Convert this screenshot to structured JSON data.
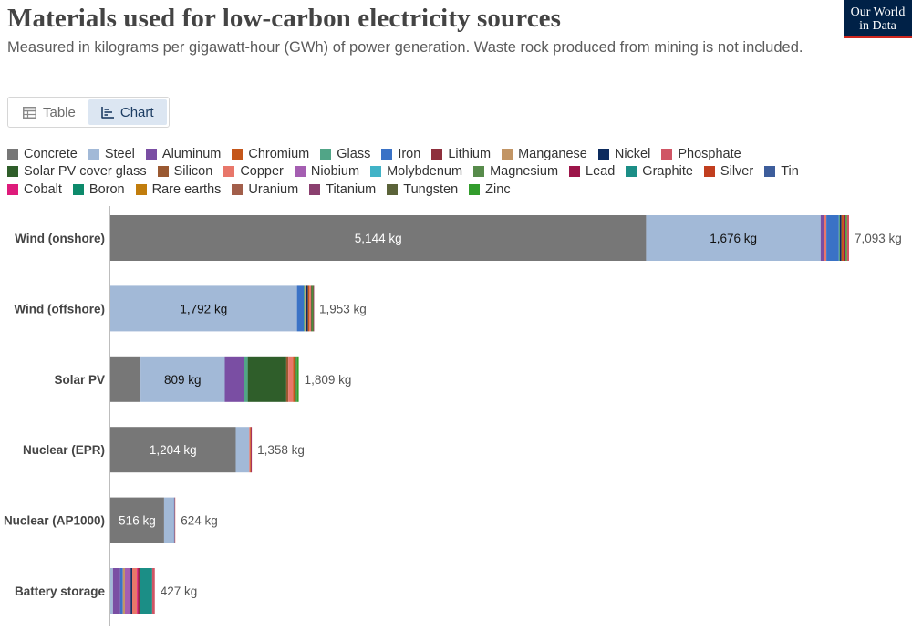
{
  "header": {
    "title": "Materials used for low-carbon electricity sources",
    "subtitle": "Measured in kilograms per gigawatt-hour (GWh) of power generation. Waste rock produced from mining is not included.",
    "logo_line1": "Our World",
    "logo_line2": "in Data"
  },
  "tabs": [
    {
      "label": "Table",
      "icon": "table-icon",
      "active": false
    },
    {
      "label": "Chart",
      "icon": "chart-icon",
      "active": true
    }
  ],
  "chart_data": {
    "type": "bar",
    "orientation": "horizontal",
    "stacked": true,
    "unit": "kg",
    "categories": [
      "Wind (onshore)",
      "Wind (offshore)",
      "Solar PV",
      "Nuclear (EPR)",
      "Nuclear (AP1000)",
      "Battery storage"
    ],
    "totals": [
      "7,093 kg",
      "1,953 kg",
      "1,809 kg",
      "1,358 kg",
      "624 kg",
      "427 kg"
    ],
    "total_values": [
      7093,
      1953,
      1809,
      1358,
      624,
      427
    ],
    "legend_rows": [
      [
        "Concrete",
        "Steel",
        "Aluminum",
        "Chromium",
        "Glass",
        "Iron",
        "Lithium",
        "Manganese",
        "Nickel",
        "Phosphate"
      ],
      [
        "Solar PV cover glass",
        "Silicon",
        "Copper",
        "Niobium",
        "Molybdenum",
        "Magnesium",
        "Lead",
        "Graphite",
        "Silver",
        "Tin"
      ],
      [
        "Cobalt",
        "Boron",
        "Rare earths",
        "Uranium",
        "Titanium",
        "Tungsten",
        "Zinc"
      ]
    ],
    "colors": {
      "Concrete": "#777777",
      "Steel": "#a2b9d7",
      "Aluminum": "#7a4ea3",
      "Chromium": "#c4561a",
      "Glass": "#51a587",
      "Iron": "#3a72c6",
      "Lithium": "#8e2f3c",
      "Manganese": "#c29565",
      "Nickel": "#0c2b5e",
      "Phosphate": "#d05565",
      "Solar PV cover glass": "#2f5e2a",
      "Silicon": "#9a5932",
      "Copper": "#e8776a",
      "Niobium": "#a45eb1",
      "Molybdenum": "#41b3c7",
      "Magnesium": "#578b4b",
      "Lead": "#9c1549",
      "Graphite": "#1b8e86",
      "Silver": "#c13e1f",
      "Tin": "#3d5d9b",
      "Cobalt": "#de1b7b",
      "Boron": "#0d8a6b",
      "Rare earths": "#c17d0d",
      "Uranium": "#a25e4a",
      "Titanium": "#8a3f6f",
      "Tungsten": "#5b6339",
      "Zinc": "#329c2c"
    },
    "series_values": [
      [
        {
          "material": "Concrete",
          "value": 5144,
          "label": "5,144 kg"
        },
        {
          "material": "Steel",
          "value": 1676,
          "label": "1,676 kg"
        },
        {
          "material": "Aluminum",
          "value": 35
        },
        {
          "material": "Copper",
          "value": 20
        },
        {
          "material": "Iron",
          "value": 120
        },
        {
          "material": "Glass",
          "value": 10
        },
        {
          "material": "Nickel",
          "value": 15
        },
        {
          "material": "Chromium",
          "value": 20
        },
        {
          "material": "Lead",
          "value": 10
        },
        {
          "material": "Magnesium",
          "value": 10
        },
        {
          "material": "Zinc",
          "value": 13
        },
        {
          "material": "Phosphate",
          "value": 20
        }
      ],
      [
        {
          "material": "Steel",
          "value": 1792,
          "label": "1,792 kg"
        },
        {
          "material": "Iron",
          "value": 65
        },
        {
          "material": "Glass",
          "value": 10
        },
        {
          "material": "Manganese",
          "value": 15
        },
        {
          "material": "Nickel",
          "value": 15
        },
        {
          "material": "Chromium",
          "value": 15
        },
        {
          "material": "Copper",
          "value": 15
        },
        {
          "material": "Tungsten",
          "value": 12
        },
        {
          "material": "Zinc",
          "value": 10
        },
        {
          "material": "Lead",
          "value": 4
        }
      ],
      [
        {
          "material": "Concrete",
          "value": 290
        },
        {
          "material": "Steel",
          "value": 809,
          "label": "809 kg"
        },
        {
          "material": "Aluminum",
          "value": 180
        },
        {
          "material": "Glass",
          "value": 40
        },
        {
          "material": "Solar PV cover glass",
          "value": 370
        },
        {
          "material": "Silicon",
          "value": 20
        },
        {
          "material": "Copper",
          "value": 45
        },
        {
          "material": "Chromium",
          "value": 15
        },
        {
          "material": "Magnesium",
          "value": 20
        },
        {
          "material": "Zinc",
          "value": 20
        }
      ],
      [
        {
          "material": "Concrete",
          "value": 1204,
          "label": "1,204 kg"
        },
        {
          "material": "Steel",
          "value": 130
        },
        {
          "material": "Copper",
          "value": 8
        },
        {
          "material": "Chromium",
          "value": 8
        },
        {
          "material": "Lead",
          "value": 8
        }
      ],
      [
        {
          "material": "Concrete",
          "value": 516,
          "label": "516 kg"
        },
        {
          "material": "Steel",
          "value": 95
        },
        {
          "material": "Iron",
          "value": 6
        },
        {
          "material": "Copper",
          "value": 7
        }
      ],
      [
        {
          "material": "Steel",
          "value": 25
        },
        {
          "material": "Aluminum",
          "value": 70
        },
        {
          "material": "Iron",
          "value": 25
        },
        {
          "material": "Manganese",
          "value": 20
        },
        {
          "material": "Niobium",
          "value": 55
        },
        {
          "material": "Nickel",
          "value": 15
        },
        {
          "material": "Copper",
          "value": 45
        },
        {
          "material": "Cobalt",
          "value": 12
        },
        {
          "material": "Lithium",
          "value": 15
        },
        {
          "material": "Graphite",
          "value": 120
        },
        {
          "material": "Phosphate",
          "value": 25
        }
      ]
    ]
  }
}
